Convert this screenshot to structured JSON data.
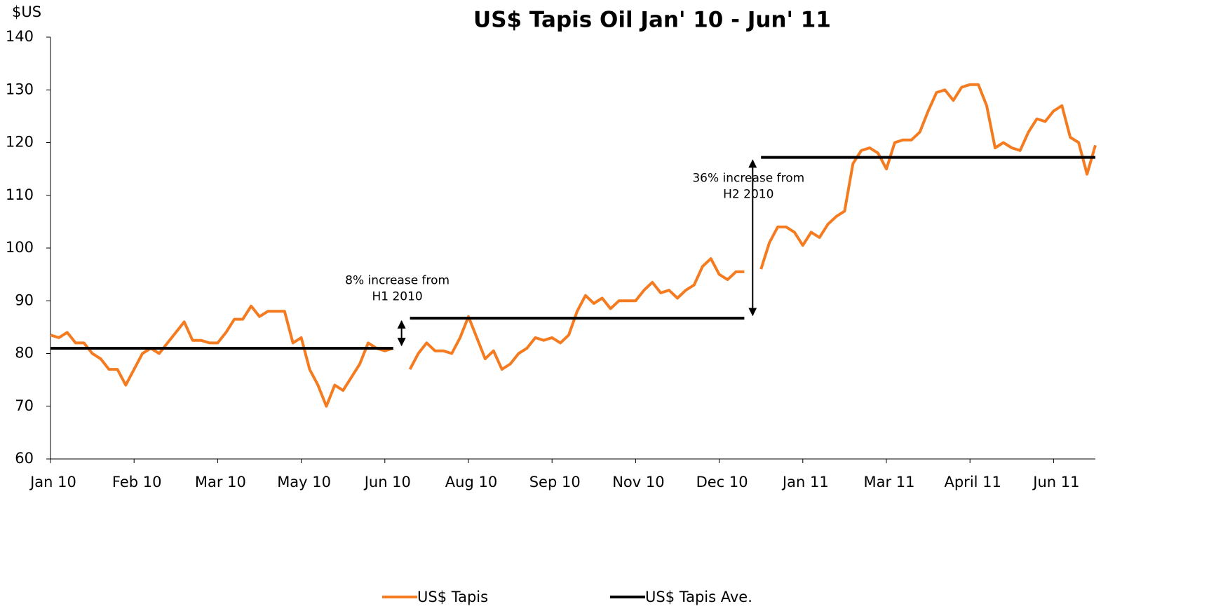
{
  "chart_data": {
    "type": "line",
    "title": "US$ Tapis Oil Jan' 10 - Jun' 11",
    "y_label": "$US",
    "categories": [
      "Jan 10",
      null,
      null,
      null,
      null,
      null,
      null,
      null,
      null,
      null,
      "Feb 10",
      null,
      null,
      null,
      null,
      null,
      null,
      null,
      null,
      null,
      "Mar 10",
      null,
      null,
      null,
      null,
      null,
      null,
      null,
      null,
      null,
      "May 10",
      null,
      null,
      null,
      null,
      null,
      null,
      null,
      null,
      null,
      "Jun 10",
      null,
      null,
      null,
      null,
      null,
      null,
      null,
      null,
      null,
      "Aug 10",
      null,
      null,
      null,
      null,
      null,
      null,
      null,
      null,
      null,
      "Sep 10",
      null,
      null,
      null,
      null,
      null,
      null,
      null,
      null,
      null,
      "Nov 10",
      null,
      null,
      null,
      null,
      null,
      null,
      null,
      null,
      null,
      "Dec 10",
      null,
      null,
      null,
      null,
      null,
      null,
      null,
      null,
      null,
      "Jan 11",
      null,
      null,
      null,
      null,
      null,
      null,
      null,
      null,
      null,
      "Mar 11",
      null,
      null,
      null,
      null,
      null,
      null,
      null,
      null,
      null,
      "April 11",
      null,
      null,
      null,
      null,
      null,
      null,
      null,
      null,
      null,
      "Jun 11",
      null,
      null,
      null,
      null,
      null
    ],
    "series": [
      {
        "name": "US$ Tapis",
        "color": "#f47b20",
        "values": [
          83.5,
          83,
          84,
          82,
          82,
          80,
          79,
          77,
          77,
          74,
          77,
          80,
          81,
          80,
          82,
          84,
          86,
          82.5,
          82.5,
          82,
          82,
          84,
          86.5,
          86.5,
          89,
          87,
          88,
          88,
          88,
          82,
          83,
          77,
          74,
          70,
          74,
          73,
          75.5,
          78,
          82,
          81,
          80.5,
          81,
          null,
          77,
          80,
          82,
          80.5,
          80.5,
          80,
          83,
          87,
          83,
          79,
          80.5,
          77,
          78,
          80,
          81,
          83,
          82.5,
          83,
          82,
          83.5,
          88,
          91,
          89.5,
          90.5,
          88.5,
          90,
          90,
          90,
          92,
          93.5,
          91.5,
          92,
          90.5,
          92,
          93,
          96.5,
          98,
          95,
          94,
          95.5,
          95.5,
          null,
          96,
          101,
          104,
          104,
          103,
          100.5,
          103,
          102,
          104.5,
          106,
          107,
          116,
          118.5,
          119,
          118,
          115,
          120,
          120.5,
          120.5,
          122,
          126,
          129.5,
          130,
          128,
          130.5,
          131,
          131,
          127,
          119,
          120,
          119,
          118.5,
          122,
          124.5,
          124,
          126,
          127,
          121,
          120,
          114,
          119.5
        ]
      },
      {
        "name": "US$ Tapis Ave.",
        "color": "#000000",
        "values": [
          81,
          81,
          81,
          81,
          81,
          81,
          81,
          81,
          81,
          81,
          81,
          81,
          81,
          81,
          81,
          81,
          81,
          81,
          81,
          81,
          81,
          81,
          81,
          81,
          81,
          81,
          81,
          81,
          81,
          81,
          81,
          81,
          81,
          81,
          81,
          81,
          81,
          81,
          81,
          81,
          81,
          81,
          null,
          86.7,
          86.7,
          86.7,
          86.7,
          86.7,
          86.7,
          86.7,
          86.7,
          86.7,
          86.7,
          86.7,
          86.7,
          86.7,
          86.7,
          86.7,
          86.7,
          86.7,
          86.7,
          86.7,
          86.7,
          86.7,
          86.7,
          86.7,
          86.7,
          86.7,
          86.7,
          86.7,
          86.7,
          86.7,
          86.7,
          86.7,
          86.7,
          86.7,
          86.7,
          86.7,
          86.7,
          86.7,
          86.7,
          86.7,
          86.7,
          86.7,
          null,
          117.2,
          117.2,
          117.2,
          117.2,
          117.2,
          117.2,
          117.2,
          117.2,
          117.2,
          117.2,
          117.2,
          117.2,
          117.2,
          117.2,
          117.2,
          117.2,
          117.2,
          117.2,
          117.2,
          117.2,
          117.2,
          117.2,
          117.2,
          117.2,
          117.2,
          117.2,
          117.2,
          117.2,
          117.2,
          117.2,
          117.2,
          117.2,
          117.2,
          117.2,
          117.2,
          117.2,
          117.2,
          117.2,
          117.2,
          117.2,
          117.2
        ]
      }
    ],
    "ylim": [
      60,
      140
    ],
    "yticks": [
      60,
      70,
      80,
      90,
      100,
      110,
      120,
      130,
      140
    ],
    "annotations": [
      {
        "lines": [
          "8% increase from",
          "H1 2010"
        ]
      },
      {
        "lines": [
          "36% increase from",
          "H2 2010"
        ]
      }
    ],
    "legend": "bottom"
  }
}
